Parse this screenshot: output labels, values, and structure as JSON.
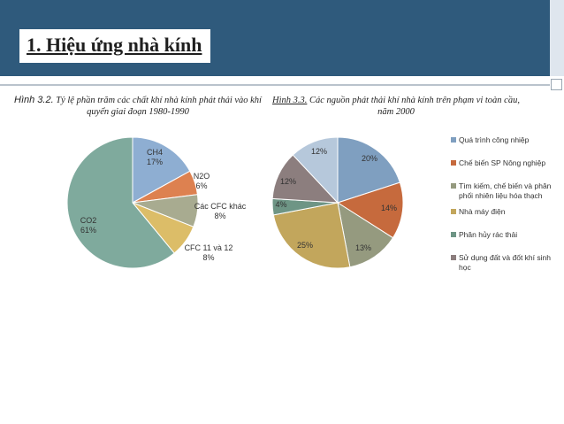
{
  "header": {
    "title": "1. Hiệu ứng nhà kính"
  },
  "caption1": {
    "lead": "Hình 3.2.",
    "text": " Tỷ lệ phần trăm các chất khí nhà kính phát thải vào khí quyển giai đoạn 1980-1990"
  },
  "caption2": {
    "lead": "Hình 3.3.",
    "text": " Các nguồn phát thải khí nhà kính trên phạm vi toàn cầu, năm 2000"
  },
  "chart_data": [
    {
      "type": "pie",
      "title": "",
      "slices": [
        {
          "label": "CH4",
          "value": 17,
          "pct": "17%",
          "color": "#8eaed2"
        },
        {
          "label": "N2O",
          "value": 6,
          "pct": "6%",
          "color": "#dd8150"
        },
        {
          "label": "Các CFC khác",
          "value": 8,
          "pct": "8%",
          "color": "#a8ab90"
        },
        {
          "label": "CFC 11 và 12",
          "value": 8,
          "pct": "8%",
          "color": "#dcbd68"
        },
        {
          "label": "CO2",
          "value": 61,
          "pct": "61%",
          "color": "#7faa9d"
        }
      ]
    },
    {
      "type": "pie",
      "title": "",
      "legend": "right",
      "slices": [
        {
          "label": "Quá trình công nhiệp",
          "value": 20,
          "pct": "20%",
          "color": "#7f9fc0"
        },
        {
          "label": "Chế biến SP Nông nghiệp",
          "value": 14,
          "pct": "14%",
          "color": "#c66a3d"
        },
        {
          "label": "Tìm kiếm, chế biến và phân phối nhiên liệu hóa thạch",
          "value": 13,
          "pct": "13%",
          "color": "#959a7f"
        },
        {
          "label": "Nhà máy điện",
          "value": 25,
          "pct": "25%",
          "color": "#c2a65c"
        },
        {
          "label": "Phân hủy rác thải",
          "value": 4,
          "pct": "4%",
          "color": "#6e9585"
        },
        {
          "label": "Sử dụng đất và đốt khí sinh học",
          "value": 12,
          "pct": "12%",
          "color": "#8c7e7e"
        },
        {
          "label": "",
          "value": 12,
          "pct": "12%",
          "color": "#b6c8db"
        }
      ]
    }
  ]
}
